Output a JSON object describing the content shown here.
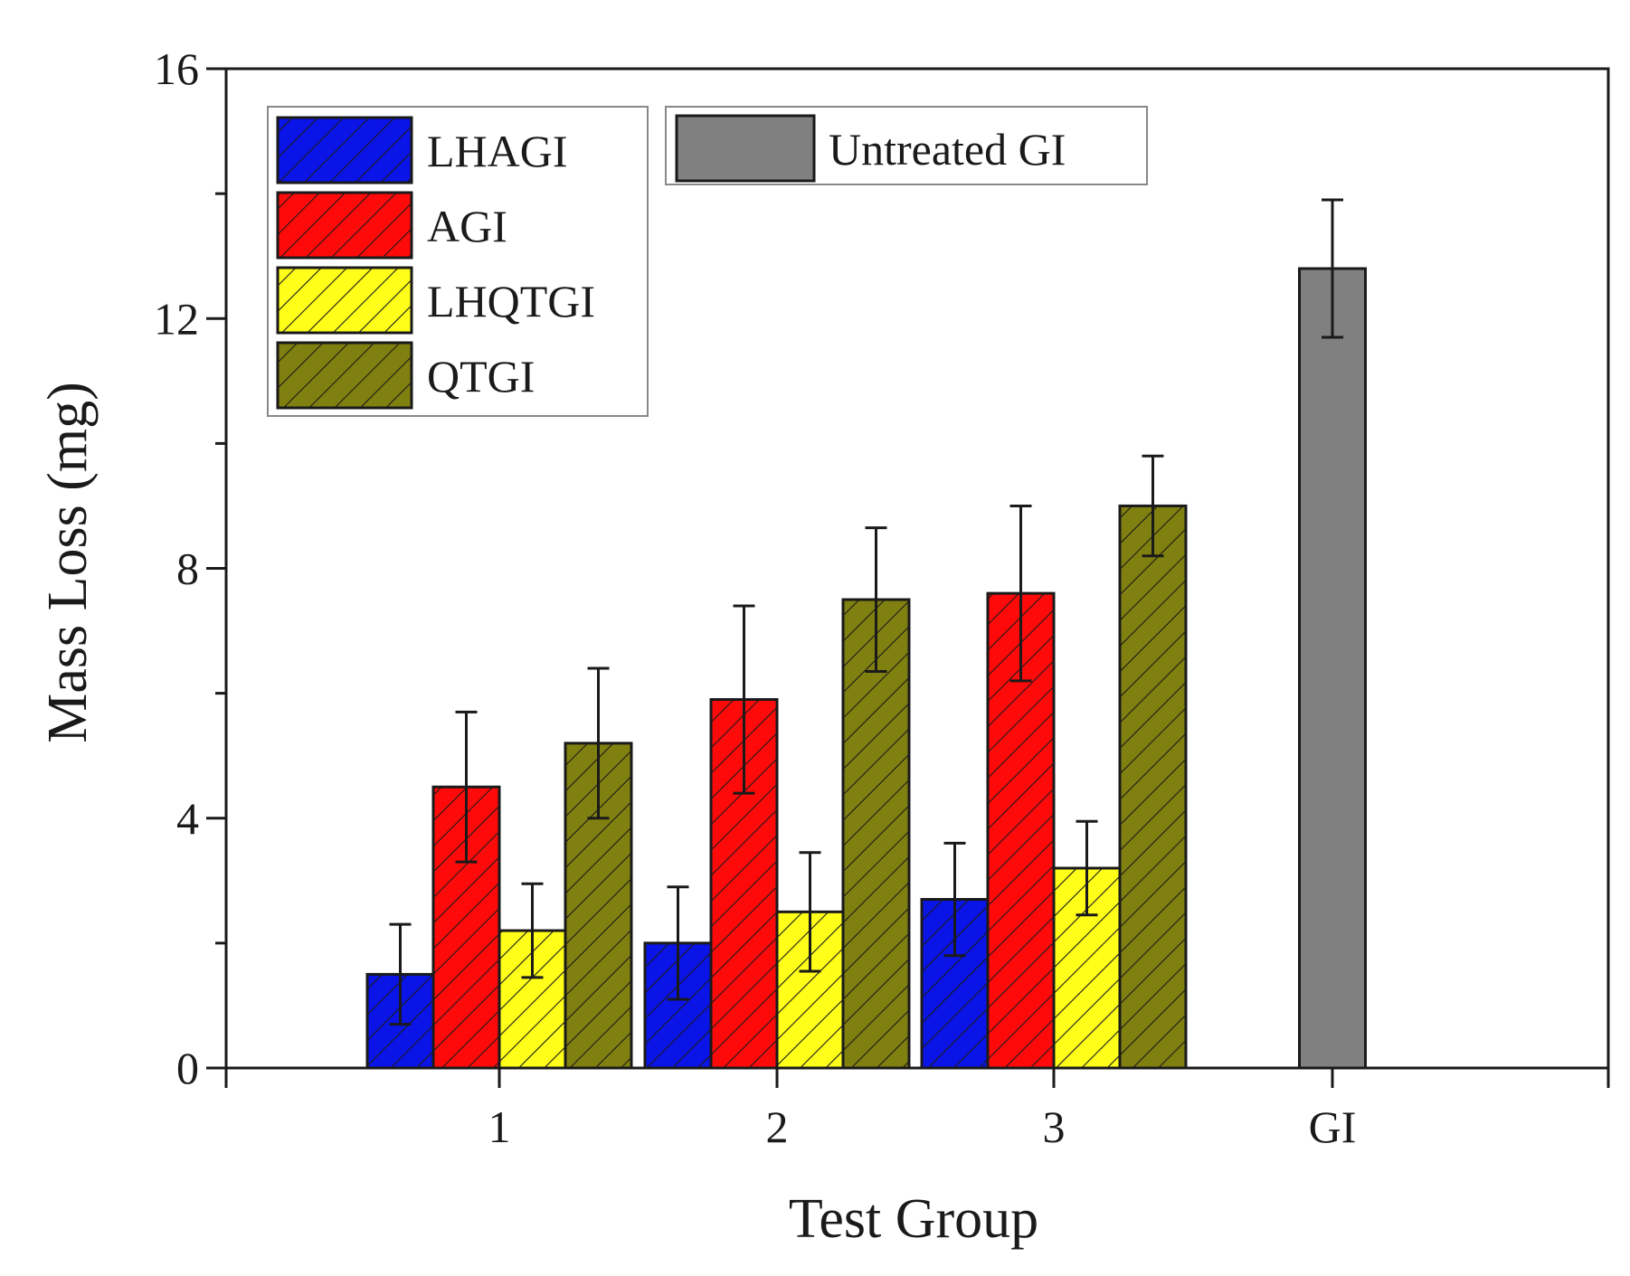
{
  "chart_data": {
    "type": "bar",
    "title": "",
    "xlabel": "Test Group",
    "ylabel": "Mass Loss (mg)",
    "ylim": [
      0,
      16
    ],
    "yticks": [
      "0",
      "4",
      "8",
      "12",
      "16"
    ],
    "categories": [
      "1",
      "2",
      "3",
      "GI"
    ],
    "grid": false,
    "legend_position": "top-left",
    "series": [
      {
        "name": "LHAGI",
        "color": "#0a14e6",
        "hatched": true,
        "values": [
          1.5,
          2.0,
          2.7,
          null
        ],
        "errors": [
          0.8,
          0.9,
          0.9,
          null
        ]
      },
      {
        "name": "AGI",
        "color": "#ff0a0a",
        "hatched": true,
        "values": [
          4.5,
          5.9,
          7.6,
          null
        ],
        "errors": [
          1.2,
          1.5,
          1.4,
          null
        ]
      },
      {
        "name": "LHQTGI",
        "color": "#ffff1a",
        "hatched": true,
        "values": [
          2.2,
          2.5,
          3.2,
          null
        ],
        "errors": [
          0.75,
          0.95,
          0.75,
          null
        ]
      },
      {
        "name": "QTGI",
        "color": "#808010",
        "hatched": true,
        "values": [
          5.2,
          7.5,
          9.0,
          null
        ],
        "errors": [
          1.2,
          1.15,
          0.8,
          null
        ]
      },
      {
        "name": "Untreated GI",
        "color": "#808080",
        "hatched": false,
        "values": [
          null,
          null,
          null,
          12.8
        ],
        "errors": [
          null,
          null,
          null,
          1.1
        ]
      }
    ]
  }
}
